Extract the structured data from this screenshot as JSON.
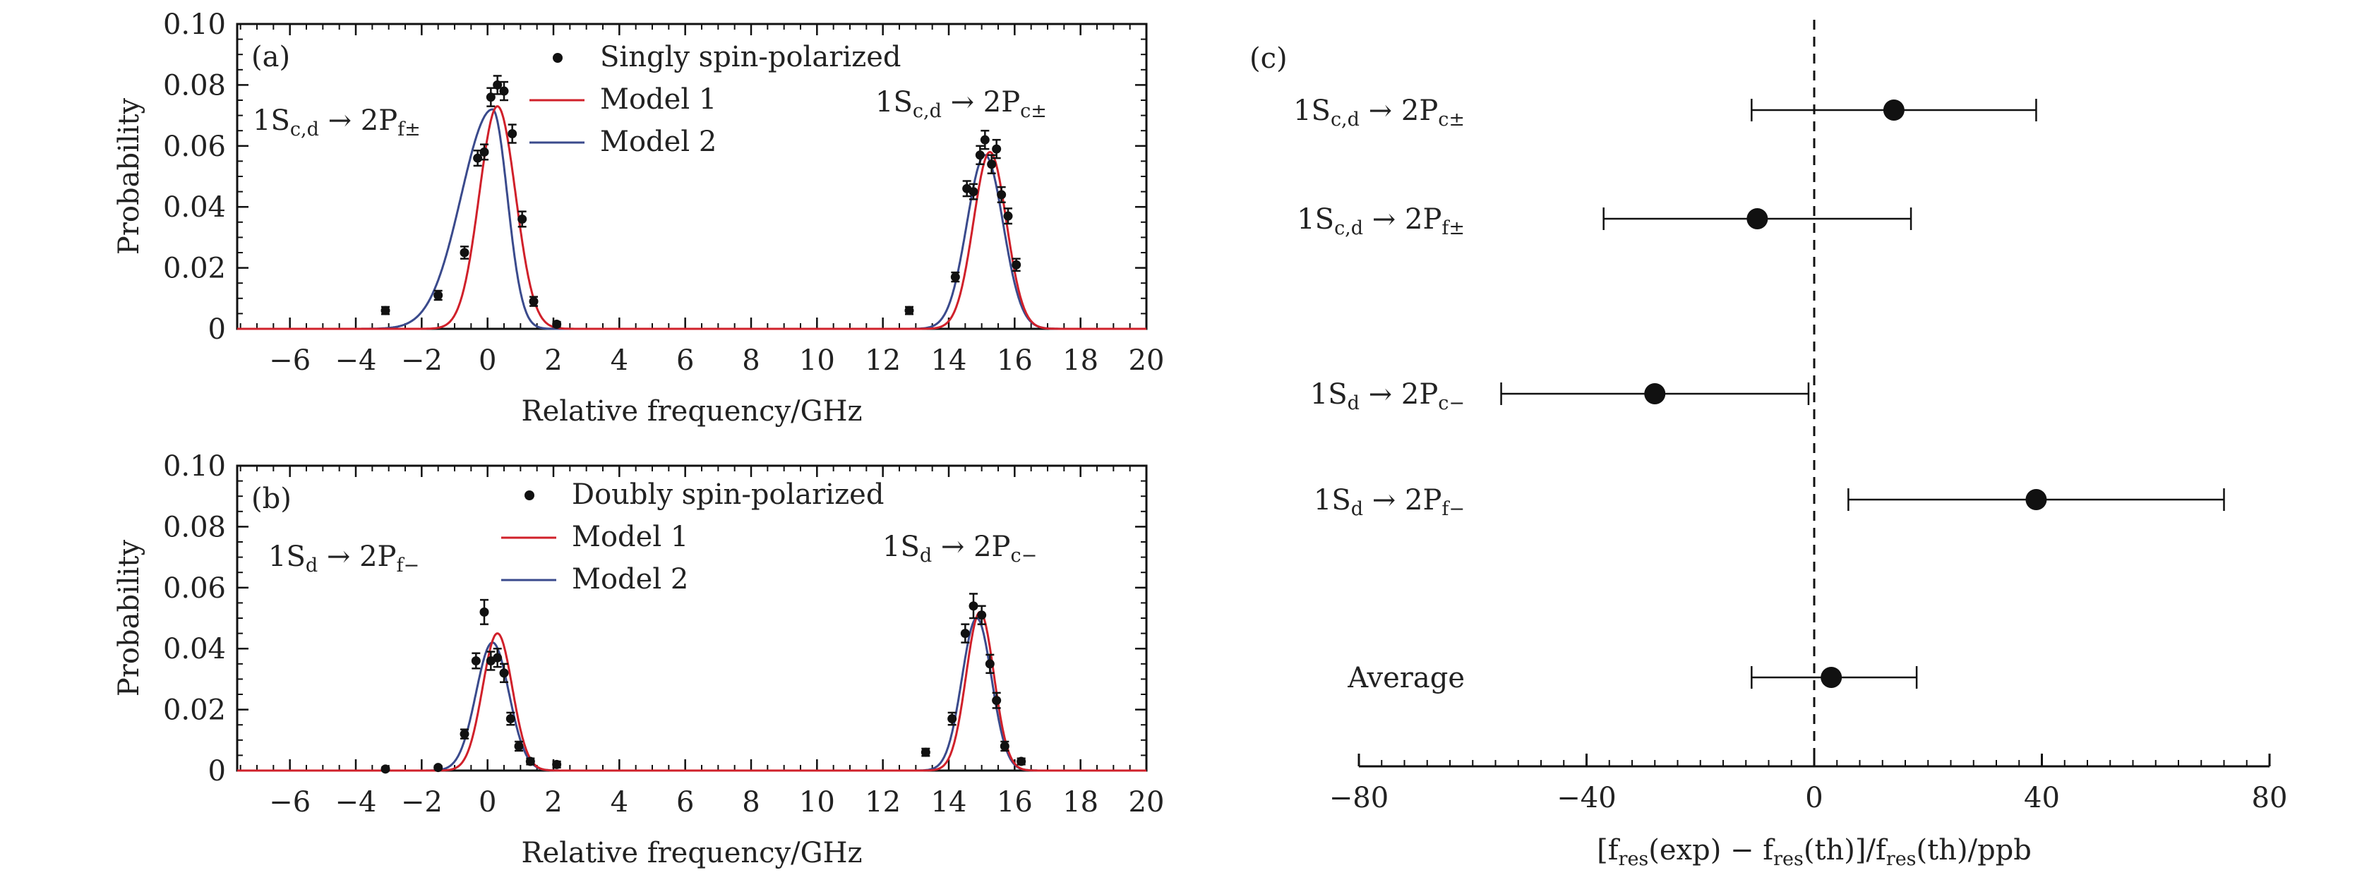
{
  "chart_data": [
    {
      "type": "scatter",
      "panel_label": "(a)",
      "xlabel": "Relative frequency/GHz",
      "ylabel": "Probability",
      "xlim": [
        -7.6,
        20
      ],
      "ylim": [
        0,
        0.1
      ],
      "xticks": [
        -6,
        -4,
        -2,
        0,
        2,
        4,
        6,
        8,
        10,
        12,
        14,
        16,
        18,
        20
      ],
      "xtick_labels": [
        "−6",
        "−4",
        "−2",
        "0",
        "2",
        "4",
        "6",
        "8",
        "10",
        "12",
        "14",
        "16",
        "18",
        "20"
      ],
      "yticks": [
        0,
        0.02,
        0.04,
        0.06,
        0.08,
        0.1
      ],
      "ytick_labels": [
        "0",
        "0.02",
        "0.04",
        "0.06",
        "0.08",
        "0.10"
      ],
      "legend": {
        "position": "top-center",
        "entries": [
          {
            "label": "Singly spin-polarized",
            "kind": "points",
            "color": "#111111"
          },
          {
            "label": "Model 1",
            "kind": "line",
            "color": "#d0202a"
          },
          {
            "label": "Model 2",
            "kind": "line",
            "color": "#3a4a8c"
          }
        ]
      },
      "annotations": [
        {
          "base": "1S",
          "sub1": "c,d",
          "arrow": " → 2P",
          "sub2": "f±",
          "near": "left peak"
        },
        {
          "base": "1S",
          "sub1": "c,d",
          "arrow": " → 2P",
          "sub2": "c±",
          "near": "right peak"
        }
      ],
      "points": [
        {
          "x": -3.1,
          "y": 0.006,
          "err": 0.0012
        },
        {
          "x": -1.5,
          "y": 0.011,
          "err": 0.0015
        },
        {
          "x": -0.7,
          "y": 0.025,
          "err": 0.002
        },
        {
          "x": -0.3,
          "y": 0.056,
          "err": 0.0025
        },
        {
          "x": -0.1,
          "y": 0.058,
          "err": 0.0025
        },
        {
          "x": 0.1,
          "y": 0.076,
          "err": 0.003
        },
        {
          "x": 0.3,
          "y": 0.08,
          "err": 0.003
        },
        {
          "x": 0.5,
          "y": 0.078,
          "err": 0.003
        },
        {
          "x": 0.75,
          "y": 0.064,
          "err": 0.003
        },
        {
          "x": 1.05,
          "y": 0.036,
          "err": 0.0025
        },
        {
          "x": 1.4,
          "y": 0.009,
          "err": 0.0015
        },
        {
          "x": 2.1,
          "y": 0.0015,
          "err": 0.0008
        },
        {
          "x": 12.8,
          "y": 0.006,
          "err": 0.0012
        },
        {
          "x": 14.2,
          "y": 0.017,
          "err": 0.0015
        },
        {
          "x": 14.55,
          "y": 0.046,
          "err": 0.0025
        },
        {
          "x": 14.75,
          "y": 0.045,
          "err": 0.0025
        },
        {
          "x": 14.95,
          "y": 0.057,
          "err": 0.003
        },
        {
          "x": 15.1,
          "y": 0.062,
          "err": 0.003
        },
        {
          "x": 15.3,
          "y": 0.054,
          "err": 0.003
        },
        {
          "x": 15.45,
          "y": 0.059,
          "err": 0.003
        },
        {
          "x": 15.6,
          "y": 0.044,
          "err": 0.0025
        },
        {
          "x": 15.8,
          "y": 0.037,
          "err": 0.0025
        },
        {
          "x": 16.05,
          "y": 0.021,
          "err": 0.002
        }
      ],
      "series": [
        {
          "name": "Model 1",
          "peaks": [
            {
              "center": 0.3,
              "amp": 0.073,
              "sigma": 0.55
            },
            {
              "center": 15.25,
              "amp": 0.058,
              "sigma": 0.5
            }
          ]
        },
        {
          "name": "Model 2",
          "peaks": [
            {
              "center": 0.15,
              "amp": 0.072,
              "sigma_left": 0.95,
              "sigma_right": 0.45
            },
            {
              "center": 15.1,
              "amp": 0.057,
              "sigma": 0.55
            }
          ]
        }
      ]
    },
    {
      "type": "scatter",
      "panel_label": "(b)",
      "xlabel": "Relative frequency/GHz",
      "ylabel": "Probability",
      "xlim": [
        -7.6,
        20
      ],
      "ylim": [
        0,
        0.1
      ],
      "xticks": [
        -6,
        -4,
        -2,
        0,
        2,
        4,
        6,
        8,
        10,
        12,
        14,
        16,
        18,
        20
      ],
      "xtick_labels": [
        "−6",
        "−4",
        "−2",
        "0",
        "2",
        "4",
        "6",
        "8",
        "10",
        "12",
        "14",
        "16",
        "18",
        "20"
      ],
      "yticks": [
        0,
        0.02,
        0.04,
        0.06,
        0.08,
        0.1
      ],
      "ytick_labels": [
        "0",
        "0.02",
        "0.04",
        "0.06",
        "0.08",
        "0.10"
      ],
      "legend": {
        "position": "top-center",
        "entries": [
          {
            "label": "Doubly spin-polarized",
            "kind": "points",
            "color": "#111111"
          },
          {
            "label": "Model 1",
            "kind": "line",
            "color": "#d0202a"
          },
          {
            "label": "Model 2",
            "kind": "line",
            "color": "#3a4a8c"
          }
        ]
      },
      "annotations": [
        {
          "base": "1S",
          "sub1": "d",
          "arrow": " → 2P",
          "sub2": "f−",
          "near": "left peak"
        },
        {
          "base": "1S",
          "sub1": "d",
          "arrow": " → 2P",
          "sub2": "c−",
          "near": "right peak"
        }
      ],
      "points": [
        {
          "x": -3.1,
          "y": 0.0005,
          "err": 0.0005
        },
        {
          "x": -1.5,
          "y": 0.001,
          "err": 0.0005
        },
        {
          "x": -0.7,
          "y": 0.012,
          "err": 0.0015
        },
        {
          "x": -0.35,
          "y": 0.036,
          "err": 0.0025
        },
        {
          "x": -0.1,
          "y": 0.052,
          "err": 0.004
        },
        {
          "x": 0.1,
          "y": 0.036,
          "err": 0.003
        },
        {
          "x": 0.3,
          "y": 0.037,
          "err": 0.003
        },
        {
          "x": 0.5,
          "y": 0.032,
          "err": 0.003
        },
        {
          "x": 0.7,
          "y": 0.017,
          "err": 0.002
        },
        {
          "x": 0.95,
          "y": 0.008,
          "err": 0.0015
        },
        {
          "x": 1.3,
          "y": 0.003,
          "err": 0.001
        },
        {
          "x": 2.1,
          "y": 0.002,
          "err": 0.001
        },
        {
          "x": 13.3,
          "y": 0.006,
          "err": 0.0012
        },
        {
          "x": 14.1,
          "y": 0.017,
          "err": 0.002
        },
        {
          "x": 14.5,
          "y": 0.045,
          "err": 0.003
        },
        {
          "x": 14.75,
          "y": 0.054,
          "err": 0.004
        },
        {
          "x": 15.0,
          "y": 0.051,
          "err": 0.003
        },
        {
          "x": 15.25,
          "y": 0.035,
          "err": 0.003
        },
        {
          "x": 15.45,
          "y": 0.023,
          "err": 0.0025
        },
        {
          "x": 15.7,
          "y": 0.008,
          "err": 0.0015
        },
        {
          "x": 16.2,
          "y": 0.003,
          "err": 0.001
        }
      ],
      "series": [
        {
          "name": "Model 1",
          "peaks": [
            {
              "center": 0.3,
              "amp": 0.045,
              "sigma": 0.45
            },
            {
              "center": 14.95,
              "amp": 0.052,
              "sigma": 0.42
            }
          ]
        },
        {
          "name": "Model 2",
          "peaks": [
            {
              "center": 0.15,
              "amp": 0.042,
              "sigma": 0.5
            },
            {
              "center": 14.85,
              "amp": 0.05,
              "sigma": 0.45
            }
          ]
        }
      ]
    },
    {
      "type": "scatter",
      "panel_label": "(c)",
      "orientation": "forest-plot",
      "xlabel": "[f_res(exp) − f_res(th)]/f_res(th)/ppb",
      "xlim": [
        -80,
        80
      ],
      "xticks": [
        -80,
        -40,
        0,
        40,
        80
      ],
      "xtick_labels": [
        "−80",
        "−40",
        "0",
        "40",
        "80"
      ],
      "reference_line": 0,
      "rows": [
        {
          "label_base": "1S",
          "label_sub1": "c,d",
          "label_mid": " → 2P",
          "label_sub2": "c±",
          "value": 14,
          "err_low": -11,
          "err_high": 39
        },
        {
          "label_base": "1S",
          "label_sub1": "c,d",
          "label_mid": " → 2P",
          "label_sub2": "f±",
          "value": -10,
          "err_low": -37,
          "err_high": 17
        },
        {
          "label_base": "1S",
          "label_sub1": "d",
          "label_mid": " → 2P",
          "label_sub2": "c−",
          "value": -28,
          "err_low": -55,
          "err_high": -1
        },
        {
          "label_base": "1S",
          "label_sub1": "d",
          "label_mid": " → 2P",
          "label_sub2": "f−",
          "value": 39,
          "err_low": 6,
          "err_high": 72
        },
        {
          "label_base": "Average",
          "label_sub1": "",
          "label_mid": "",
          "label_sub2": "",
          "value": 3,
          "err_low": -11,
          "err_high": 18
        }
      ]
    }
  ]
}
